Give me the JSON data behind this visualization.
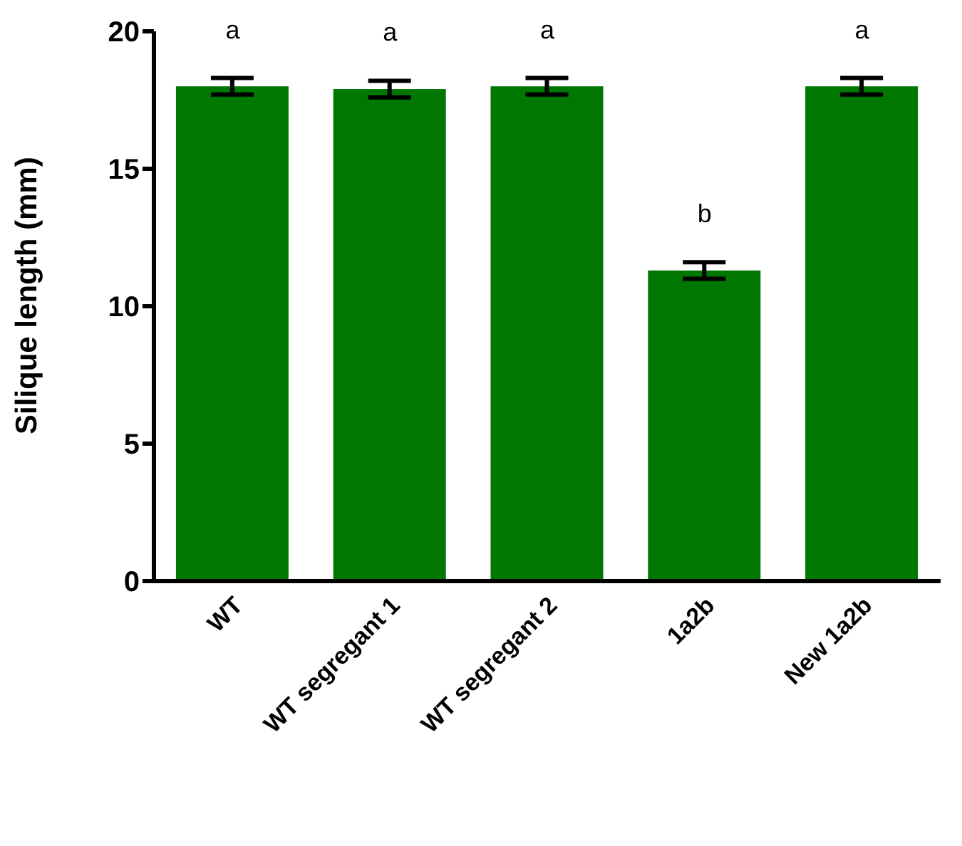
{
  "chart_data": {
    "type": "bar",
    "ylabel": "Silique length (mm)",
    "categories": [
      "WT",
      "WT segregant 1",
      "WT segregant 2",
      "1a2b",
      "New 1a2b"
    ],
    "values": [
      18.0,
      17.9,
      18.0,
      11.3,
      18.0
    ],
    "errors": [
      0.3,
      0.3,
      0.3,
      0.3,
      0.3
    ],
    "color": "#007700",
    "ylim": [
      0,
      20
    ],
    "yticks": [
      0,
      5,
      10,
      15,
      20
    ],
    "grid": false,
    "annotations": [
      "a",
      "a",
      "a",
      "b",
      "a"
    ]
  }
}
